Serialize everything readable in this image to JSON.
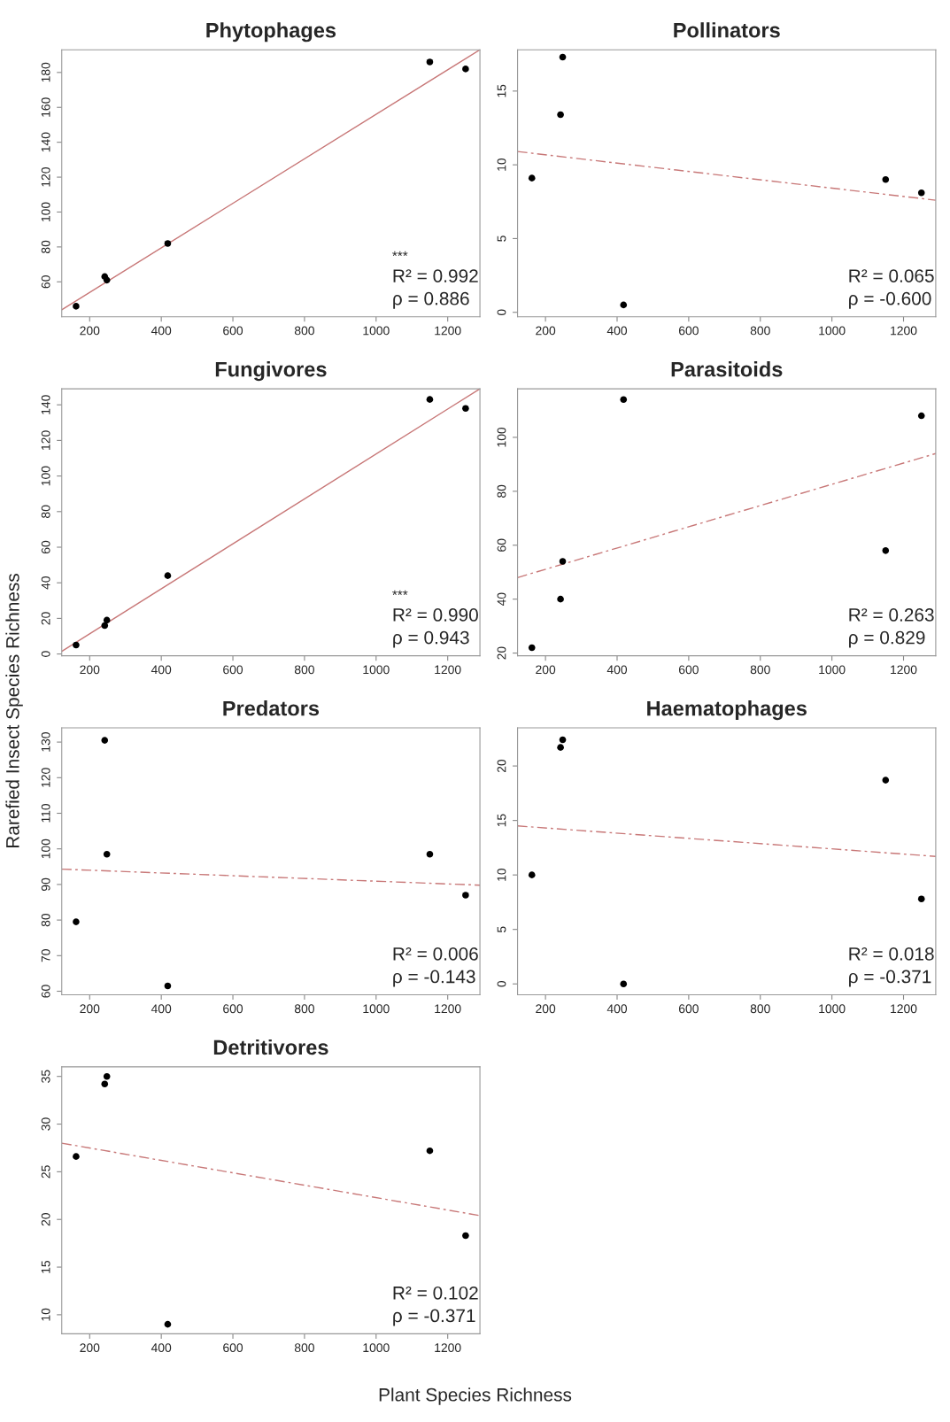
{
  "chart_data": [
    {
      "type": "scatter",
      "title": "Phytophages",
      "xlim": [
        122,
        1290
      ],
      "xticks": [
        200,
        400,
        600,
        800,
        1000,
        1200
      ],
      "ylim": [
        40,
        193
      ],
      "yticks": [
        60,
        80,
        100,
        120,
        140,
        160,
        180
      ],
      "series": [
        {
          "color": "#000000",
          "marker": "circle",
          "x": [
            162,
            242,
            248,
            418,
            1150,
            1250
          ],
          "values": [
            46,
            63,
            61,
            82,
            186,
            182
          ]
        },
        {
          "type": "line",
          "color": "#c87878",
          "line_style": "solid",
          "x": [
            122,
            1290
          ],
          "values": [
            44,
            193
          ]
        }
      ],
      "annotations": [
        "***",
        "R² = 0.992",
        "ρ = 0.886"
      ]
    },
    {
      "type": "scatter",
      "title": "Pollinators",
      "xlim": [
        122,
        1290
      ],
      "xticks": [
        200,
        400,
        600,
        800,
        1000,
        1200
      ],
      "ylim": [
        -0.3,
        17.8
      ],
      "yticks": [
        0,
        5,
        10,
        15
      ],
      "series": [
        {
          "color": "#000000",
          "marker": "circle",
          "x": [
            162,
            242,
            248,
            418,
            1150,
            1250
          ],
          "values": [
            9.1,
            13.4,
            17.3,
            0.5,
            9.0,
            8.1
          ]
        },
        {
          "type": "line",
          "color": "#c87878",
          "line_style": "dashed",
          "x": [
            122,
            1290
          ],
          "values": [
            10.9,
            7.6
          ]
        }
      ],
      "annotations": [
        "R² = 0.065",
        "ρ = -0.600"
      ]
    },
    {
      "type": "scatter",
      "title": "Fungivores",
      "ylabel": "Rarefied Insect Species Richness",
      "xlim": [
        122,
        1290
      ],
      "xticks": [
        200,
        400,
        600,
        800,
        1000,
        1200
      ],
      "ylim": [
        -1,
        149
      ],
      "yticks": [
        0,
        20,
        40,
        60,
        80,
        100,
        120,
        140
      ],
      "series": [
        {
          "color": "#000000",
          "marker": "circle",
          "x": [
            162,
            242,
            248,
            418,
            1150,
            1250
          ],
          "values": [
            5,
            16,
            19,
            44,
            143,
            138
          ]
        },
        {
          "type": "line",
          "color": "#c87878",
          "line_style": "solid",
          "x": [
            122,
            1290
          ],
          "values": [
            1.5,
            149
          ]
        }
      ],
      "annotations": [
        "***",
        "R² = 0.990",
        "ρ = 0.943"
      ]
    },
    {
      "type": "scatter",
      "title": "Parasitoids",
      "xlim": [
        122,
        1290
      ],
      "xticks": [
        200,
        400,
        600,
        800,
        1000,
        1200
      ],
      "ylim": [
        19,
        118
      ],
      "yticks": [
        20,
        40,
        60,
        80,
        100
      ],
      "series": [
        {
          "color": "#000000",
          "marker": "circle",
          "x": [
            162,
            242,
            248,
            418,
            1150,
            1250
          ],
          "values": [
            22,
            40,
            54,
            114,
            58,
            108
          ]
        },
        {
          "type": "line",
          "color": "#c87878",
          "line_style": "dashed",
          "x": [
            122,
            1290
          ],
          "values": [
            48,
            94
          ]
        }
      ],
      "annotations": [
        "R² = 0.263",
        "ρ = 0.829"
      ]
    },
    {
      "type": "scatter",
      "title": "Predators",
      "xlim": [
        122,
        1290
      ],
      "xticks": [
        200,
        400,
        600,
        800,
        1000,
        1200
      ],
      "ylim": [
        59,
        134
      ],
      "yticks": [
        60,
        70,
        80,
        90,
        100,
        110,
        120,
        130
      ],
      "series": [
        {
          "color": "#000000",
          "marker": "circle",
          "x": [
            162,
            242,
            248,
            418,
            1150,
            1250
          ],
          "values": [
            79.5,
            130.5,
            98.5,
            61.5,
            98.5,
            87
          ]
        },
        {
          "type": "line",
          "color": "#c87878",
          "line_style": "dashed",
          "x": [
            122,
            1290
          ],
          "values": [
            94.3,
            89.8
          ]
        }
      ],
      "annotations": [
        "R² = 0.006",
        "ρ = -0.143"
      ]
    },
    {
      "type": "scatter",
      "title": "Haematophages",
      "xlim": [
        122,
        1290
      ],
      "xticks": [
        200,
        400,
        600,
        800,
        1000,
        1200
      ],
      "ylim": [
        -1,
        23.5
      ],
      "yticks": [
        0,
        5,
        10,
        15,
        20
      ],
      "series": [
        {
          "color": "#000000",
          "marker": "circle",
          "x": [
            162,
            242,
            248,
            418,
            1150,
            1250
          ],
          "values": [
            10,
            21.7,
            22.4,
            0,
            18.7,
            7.8
          ]
        },
        {
          "type": "line",
          "color": "#c87878",
          "line_style": "dashed",
          "x": [
            122,
            1290
          ],
          "values": [
            14.5,
            11.7
          ]
        }
      ],
      "annotations": [
        "R² = 0.018",
        "ρ = -0.371"
      ]
    },
    {
      "type": "scatter",
      "title": "Detritivores",
      "xlabel": "Plant Species Richness",
      "xlim": [
        122,
        1290
      ],
      "xticks": [
        200,
        400,
        600,
        800,
        1000,
        1200
      ],
      "ylim": [
        8,
        36
      ],
      "yticks": [
        10,
        15,
        20,
        25,
        30,
        35
      ],
      "series": [
        {
          "color": "#000000",
          "marker": "circle",
          "x": [
            162,
            242,
            248,
            418,
            1150,
            1250
          ],
          "values": [
            26.6,
            34.2,
            35,
            9,
            27.2,
            18.3
          ]
        },
        {
          "type": "line",
          "color": "#c87878",
          "line_style": "dashed",
          "x": [
            122,
            1290
          ],
          "values": [
            28,
            20.4
          ]
        }
      ],
      "annotations": [
        "R² = 0.102",
        "ρ = -0.371"
      ]
    }
  ]
}
